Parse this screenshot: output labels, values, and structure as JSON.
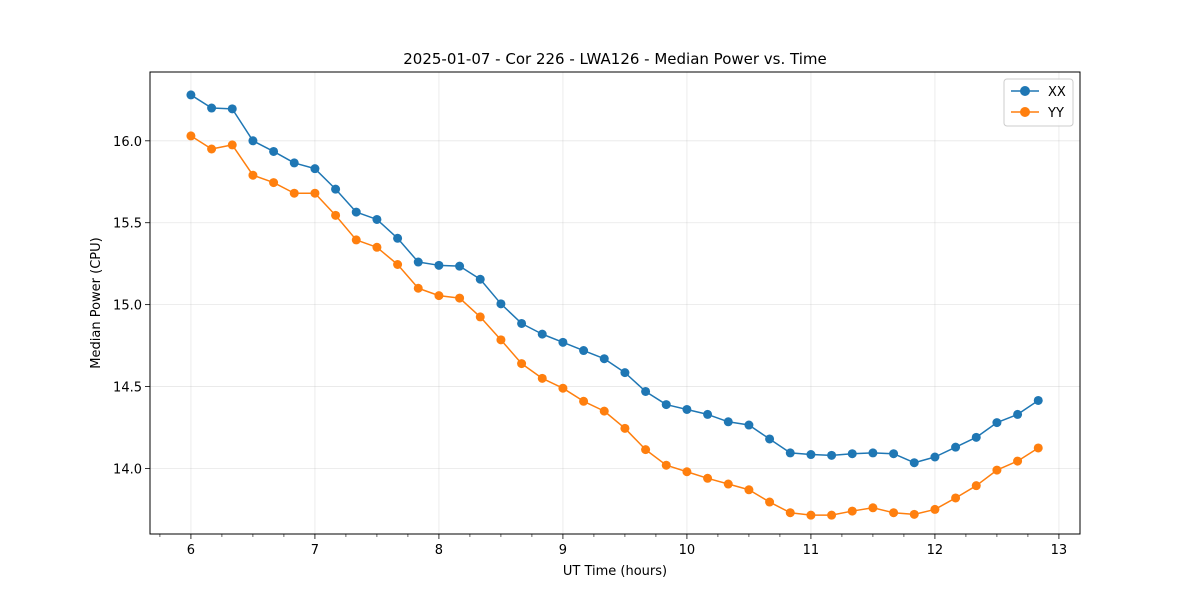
{
  "chart_data": {
    "type": "line",
    "title": "2025-01-07 - Cor 226 - LWA126 - Median Power vs. Time",
    "xlabel": "UT Time (hours)",
    "ylabel": "Median Power (CPU)",
    "xlim": [
      5.67,
      13.17
    ],
    "ylim": [
      13.6,
      16.42
    ],
    "xticks": [
      6,
      7,
      8,
      9,
      10,
      11,
      12,
      13
    ],
    "yticks": [
      14.0,
      14.5,
      15.0,
      15.5,
      16.0
    ],
    "xtick_labels": [
      "6",
      "7",
      "8",
      "9",
      "10",
      "11",
      "12",
      "13"
    ],
    "ytick_labels": [
      "14.0",
      "14.5",
      "15.0",
      "15.5",
      "16.0"
    ],
    "grid": true,
    "legend_position": "top-right",
    "x": [
      6.0,
      6.1667,
      6.3333,
      6.5,
      6.6667,
      6.8333,
      7.0,
      7.1667,
      7.3333,
      7.5,
      7.6667,
      7.8333,
      8.0,
      8.1667,
      8.3333,
      8.5,
      8.6667,
      8.8333,
      9.0,
      9.1667,
      9.3333,
      9.5,
      9.6667,
      9.8333,
      10.0,
      10.1667,
      10.3333,
      10.5,
      10.6667,
      10.8333,
      11.0,
      11.1667,
      11.3333,
      11.5,
      11.6667,
      11.8333,
      12.0,
      12.1667,
      12.3333,
      12.5,
      12.6667,
      12.8333
    ],
    "series": [
      {
        "name": "XX",
        "color": "#1f77b4",
        "values": [
          16.28,
          16.2,
          16.195,
          16.0,
          15.935,
          15.865,
          15.83,
          15.705,
          15.565,
          15.52,
          15.405,
          15.26,
          15.24,
          15.235,
          15.155,
          15.005,
          14.885,
          14.82,
          14.77,
          14.72,
          14.67,
          14.585,
          14.47,
          14.39,
          14.36,
          14.33,
          14.285,
          14.265,
          14.18,
          14.095,
          14.085,
          14.08,
          14.09,
          14.095,
          14.09,
          14.035,
          14.07,
          14.13,
          14.19,
          14.28,
          14.33,
          14.415
        ]
      },
      {
        "name": "YY",
        "color": "#ff7f0e",
        "values": [
          16.03,
          15.95,
          15.975,
          15.79,
          15.745,
          15.68,
          15.68,
          15.545,
          15.395,
          15.35,
          15.245,
          15.1,
          15.055,
          15.04,
          14.925,
          14.785,
          14.64,
          14.55,
          14.49,
          14.41,
          14.35,
          14.245,
          14.115,
          14.02,
          13.98,
          13.94,
          13.905,
          13.87,
          13.795,
          13.73,
          13.715,
          13.715,
          13.74,
          13.76,
          13.73,
          13.72,
          13.75,
          13.82,
          13.895,
          13.99,
          14.045,
          14.125
        ]
      }
    ]
  }
}
